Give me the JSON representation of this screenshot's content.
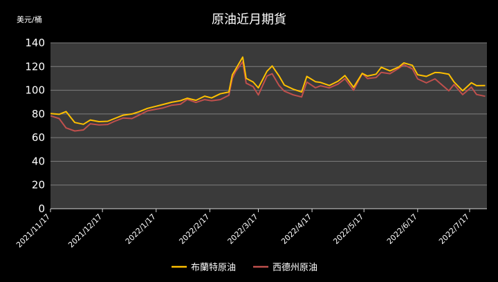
{
  "chart_data": {
    "type": "line",
    "title": "原油近月期貨",
    "ylabel": "美元/桶",
    "xlabel": "",
    "ylim": [
      0,
      140
    ],
    "yticks": [
      0,
      20,
      40,
      60,
      80,
      100,
      120,
      140
    ],
    "grid": true,
    "legend": "bottom",
    "background": "#000000",
    "plot_background": "#3a3a3a",
    "x": [
      "2021/11/17",
      "2021/11/22",
      "2021/11/26",
      "2021/12/1",
      "2021/12/6",
      "2021/12/10",
      "2021/12/15",
      "2021/12/20",
      "2021/12/24",
      "2021/12/29",
      "2022/1/3",
      "2022/1/7",
      "2022/1/12",
      "2022/1/17",
      "2022/1/21",
      "2022/1/26",
      "2022/1/31",
      "2022/2/4",
      "2022/2/9",
      "2022/2/14",
      "2022/2/18",
      "2022/2/23",
      "2022/2/28",
      "2022/3/2",
      "2022/3/4",
      "2022/3/8",
      "2022/3/10",
      "2022/3/14",
      "2022/3/17",
      "2022/3/22",
      "2022/3/25",
      "2022/3/29",
      "2022/4/1",
      "2022/4/6",
      "2022/4/11",
      "2022/4/14",
      "2022/4/19",
      "2022/4/22",
      "2022/4/27",
      "2022/5/2",
      "2022/5/6",
      "2022/5/11",
      "2022/5/16",
      "2022/5/19",
      "2022/5/24",
      "2022/5/27",
      "2022/6/1",
      "2022/6/6",
      "2022/6/9",
      "2022/6/14",
      "2022/6/17",
      "2022/6/22",
      "2022/6/27",
      "2022/6/30",
      "2022/7/5",
      "2022/7/8",
      "2022/7/13",
      "2022/7/18",
      "2022/7/21",
      "2022/7/26"
    ],
    "x_tick_labels": [
      "2021/11/17",
      "2021/12/17",
      "2022/1/17",
      "2022/2/17",
      "2022/3/17",
      "2022/4/17",
      "2022/5/17",
      "2022/6/17",
      "2022/7/17"
    ],
    "series": [
      {
        "name": "布蘭特原油",
        "color": "#ffc000",
        "values": [
          80.3,
          79.7,
          82.0,
          72.8,
          71.3,
          74.9,
          73.5,
          73.8,
          76.1,
          79.0,
          80.0,
          81.8,
          84.7,
          86.5,
          88.0,
          89.9,
          91.2,
          93.3,
          91.5,
          95.0,
          93.5,
          97.0,
          98.5,
          113.0,
          118.0,
          128.0,
          110.0,
          107.0,
          102.0,
          116.0,
          120.5,
          112.0,
          104.4,
          101.0,
          98.5,
          111.7,
          107.2,
          106.6,
          104.0,
          107.6,
          112.4,
          102.5,
          114.2,
          112.0,
          113.6,
          119.4,
          116.3,
          119.5,
          123.1,
          121.0,
          113.1,
          111.7,
          115.0,
          114.8,
          113.5,
          107.0,
          99.6,
          106.3,
          103.9,
          104.0
        ]
      },
      {
        "name": "西德州原油",
        "color": "#c0504d",
        "values": [
          78.4,
          76.1,
          68.2,
          65.6,
          66.5,
          71.7,
          70.7,
          71.1,
          73.8,
          76.6,
          76.1,
          78.9,
          82.6,
          84.0,
          85.1,
          87.4,
          88.2,
          92.3,
          89.7,
          92.1,
          91.1,
          92.1,
          95.7,
          110.0,
          116.0,
          124.0,
          106.0,
          103.0,
          96.0,
          112.0,
          113.9,
          104.0,
          99.3,
          96.2,
          94.3,
          106.9,
          102.1,
          103.8,
          102.0,
          105.2,
          109.8,
          100.0,
          114.2,
          109.9,
          110.8,
          115.1,
          114.0,
          118.5,
          121.5,
          118.0,
          109.6,
          106.2,
          109.6,
          105.8,
          99.5,
          104.8,
          96.3,
          102.6,
          96.4,
          94.9
        ]
      }
    ]
  }
}
